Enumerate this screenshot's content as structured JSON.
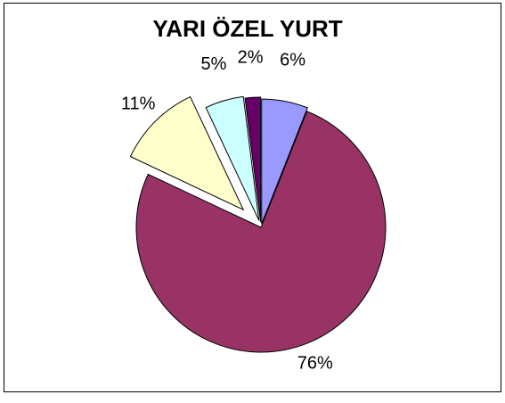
{
  "chart_data": {
    "type": "pie",
    "title": "YARI ÖZEL YURT",
    "categories": [
      null,
      null,
      null,
      null,
      null
    ],
    "values": [
      6,
      76,
      11,
      5,
      2
    ],
    "value_labels": [
      "6%",
      "76%",
      "11%",
      "5%",
      "2%"
    ],
    "colors": [
      "#9999ff",
      "#993366",
      "#ffffcc",
      "#ccffff",
      "#660066"
    ]
  }
}
